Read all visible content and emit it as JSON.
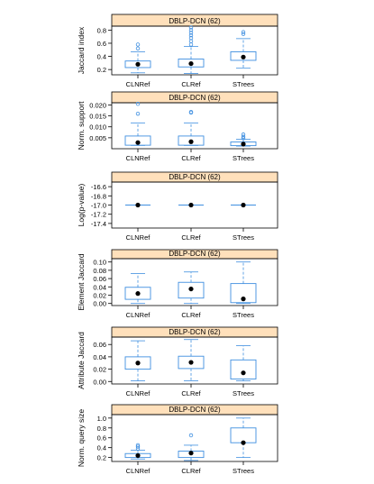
{
  "colors": {
    "strip": "#ffe0bb",
    "box": "#3f8fe0",
    "median": "#000000",
    "axis": "#000000"
  },
  "chart_data": [
    {
      "type": "boxplot",
      "title": "DBLP-DCN (62)",
      "ylabel": "Jaccard index",
      "ylim": [
        0.12,
        0.86
      ],
      "yticks": [
        0.2,
        0.4,
        0.6,
        0.8
      ],
      "ytick_labels": [
        "0.2",
        "0.4",
        "0.6",
        "0.8"
      ],
      "categories": [
        "CLNRef",
        "CLRef",
        "STrees"
      ],
      "boxes": [
        {
          "wlo": 0.15,
          "q1": 0.23,
          "med": 0.28,
          "q3": 0.33,
          "whi": 0.47,
          "outliers": [
            0.52,
            0.58
          ]
        },
        {
          "wlo": 0.14,
          "q1": 0.24,
          "med": 0.29,
          "q3": 0.36,
          "whi": 0.55,
          "outliers": [
            0.58,
            0.63,
            0.68,
            0.72,
            0.76,
            0.8,
            0.84
          ]
        },
        {
          "wlo": 0.22,
          "q1": 0.34,
          "med": 0.39,
          "q3": 0.47,
          "whi": 0.67,
          "outliers": [
            0.74,
            0.77
          ]
        }
      ]
    },
    {
      "type": "boxplot",
      "title": "DBLP-DCN (62)",
      "ylabel": "Norm. support",
      "ylim": [
        0.0,
        0.021
      ],
      "yticks": [
        0.005,
        0.01,
        0.015,
        0.02
      ],
      "ytick_labels": [
        "0.005",
        "0.010",
        "0.015",
        "0.020"
      ],
      "categories": [
        "CLNRef",
        "CLRef",
        "STrees"
      ],
      "boxes": [
        {
          "wlo": 0.0015,
          "q1": 0.0016,
          "med": 0.0028,
          "q3": 0.0058,
          "whi": 0.0118,
          "outliers": [
            0.016,
            0.0205
          ]
        },
        {
          "wlo": 0.0015,
          "q1": 0.0016,
          "med": 0.0032,
          "q3": 0.0058,
          "whi": 0.0118,
          "outliers": [
            0.0165,
            0.0168
          ]
        },
        {
          "wlo": 0.0012,
          "q1": 0.0014,
          "med": 0.0021,
          "q3": 0.0031,
          "whi": 0.0043,
          "outliers": [
            0.0048,
            0.0055,
            0.0065
          ]
        }
      ]
    },
    {
      "type": "boxplot",
      "title": "DBLP-DCN (62)",
      "ylabel": "Log(p-value)",
      "ylim": [
        -17.5,
        -16.5
      ],
      "yticks": [
        -16.6,
        -16.8,
        -17.0,
        -17.2,
        -17.4
      ],
      "ytick_labels": [
        "-16.6",
        "-16.8",
        "-17.0",
        "-17.2",
        "-17.4"
      ],
      "categories": [
        "CLNRef",
        "CLRef",
        "STrees"
      ],
      "boxes": [
        {
          "wlo": -17.0,
          "q1": -17.0,
          "med": -17.0,
          "q3": -17.0,
          "whi": -17.0,
          "outliers": []
        },
        {
          "wlo": -17.0,
          "q1": -17.0,
          "med": -17.0,
          "q3": -17.0,
          "whi": -17.0,
          "outliers": []
        },
        {
          "wlo": -17.0,
          "q1": -17.0,
          "med": -17.0,
          "q3": -17.0,
          "whi": -17.0,
          "outliers": []
        }
      ]
    },
    {
      "type": "boxplot",
      "title": "DBLP-DCN (62)",
      "ylabel": "Element Jaccard",
      "ylim": [
        -0.005,
        0.108
      ],
      "yticks": [
        0.0,
        0.02,
        0.04,
        0.06,
        0.08,
        0.1
      ],
      "ytick_labels": [
        "0.00",
        "0.02",
        "0.04",
        "0.06",
        "0.08",
        "0.10"
      ],
      "categories": [
        "CLNRef",
        "CLRef",
        "STrees"
      ],
      "boxes": [
        {
          "wlo": 0.0,
          "q1": 0.01,
          "med": 0.024,
          "q3": 0.039,
          "whi": 0.072,
          "outliers": []
        },
        {
          "wlo": 0.0,
          "q1": 0.013,
          "med": 0.035,
          "q3": 0.051,
          "whi": 0.076,
          "outliers": []
        },
        {
          "wlo": 0.0,
          "q1": 0.002,
          "med": 0.011,
          "q3": 0.048,
          "whi": 0.1,
          "outliers": []
        }
      ]
    },
    {
      "type": "boxplot",
      "title": "DBLP-DCN (62)",
      "ylabel": "Attribute Jaccard",
      "ylim": [
        -0.004,
        0.072
      ],
      "yticks": [
        0.0,
        0.02,
        0.04,
        0.06
      ],
      "ytick_labels": [
        "0.00",
        "0.02",
        "0.04",
        "0.06"
      ],
      "categories": [
        "CLNRef",
        "CLRef",
        "STrees"
      ],
      "boxes": [
        {
          "wlo": 0.001,
          "q1": 0.02,
          "med": 0.03,
          "q3": 0.04,
          "whi": 0.066,
          "outliers": []
        },
        {
          "wlo": 0.001,
          "q1": 0.021,
          "med": 0.031,
          "q3": 0.041,
          "whi": 0.068,
          "outliers": []
        },
        {
          "wlo": 0.001,
          "q1": 0.004,
          "med": 0.014,
          "q3": 0.035,
          "whi": 0.058,
          "outliers": []
        }
      ]
    },
    {
      "type": "boxplot",
      "title": "DBLP-DCN (62)",
      "ylabel": "Norm. query size",
      "ylim": [
        0.12,
        1.07
      ],
      "yticks": [
        0.2,
        0.4,
        0.6,
        0.8,
        1.0
      ],
      "ytick_labels": [
        "0.2",
        "0.4",
        "0.6",
        "0.8",
        "1.0"
      ],
      "categories": [
        "CLNRef",
        "CLRef",
        "STrees"
      ],
      "boxes": [
        {
          "wlo": 0.17,
          "q1": 0.2,
          "med": 0.24,
          "q3": 0.28,
          "whi": 0.35,
          "outliers": [
            0.38,
            0.42,
            0.45
          ]
        },
        {
          "wlo": 0.14,
          "q1": 0.2,
          "med": 0.29,
          "q3": 0.33,
          "whi": 0.45,
          "outliers": [
            0.65
          ]
        },
        {
          "wlo": 0.2,
          "q1": 0.5,
          "med": 0.5,
          "q3": 0.8,
          "whi": 1.0,
          "outliers": []
        }
      ]
    }
  ]
}
